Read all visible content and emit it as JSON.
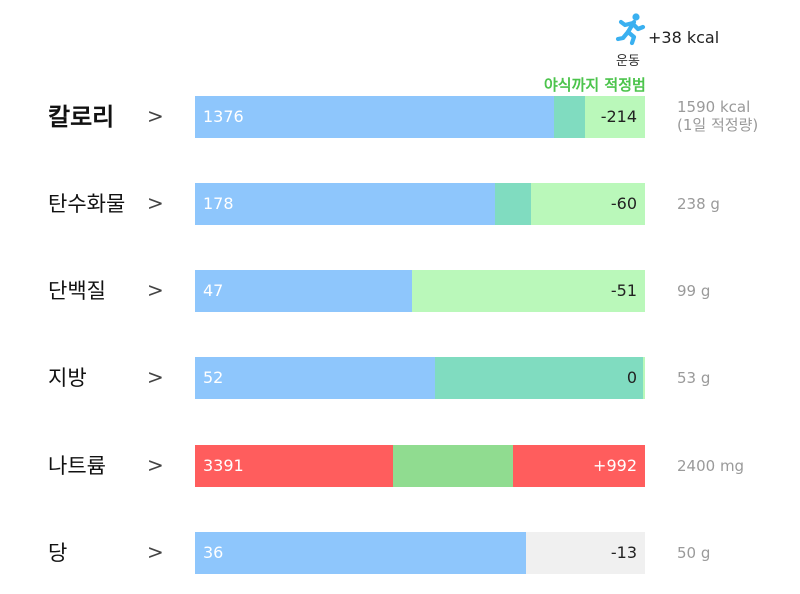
{
  "exercise": {
    "icon": "running-person-icon",
    "value": "+38 kcal",
    "label": "운동"
  },
  "note": "야식까지 적정범",
  "colors": {
    "consumed": "#8ec6fc",
    "overlap": "#80dcc0",
    "remaining": "#baf8ba",
    "excess": "#ff5d5d",
    "excess_mid": "#90dc90",
    "empty": "#f0f0f0"
  },
  "rows": [
    {
      "label": "칼로리",
      "value": "1376",
      "remaining": "-214",
      "target": "1590 kcal",
      "target_note": "(1일 적정량)"
    },
    {
      "label": "탄수화물",
      "value": "178",
      "remaining": "-60",
      "target": "238 g"
    },
    {
      "label": "단백질",
      "value": "47",
      "remaining": "-51",
      "target": "99 g"
    },
    {
      "label": "지방",
      "value": "52",
      "remaining": "0",
      "target": "53 g"
    },
    {
      "label": "나트륨",
      "value": "3391",
      "remaining": "+992",
      "target": "2400 mg"
    },
    {
      "label": "당",
      "value": "36",
      "remaining": "-13",
      "target": "50 g"
    }
  ]
}
